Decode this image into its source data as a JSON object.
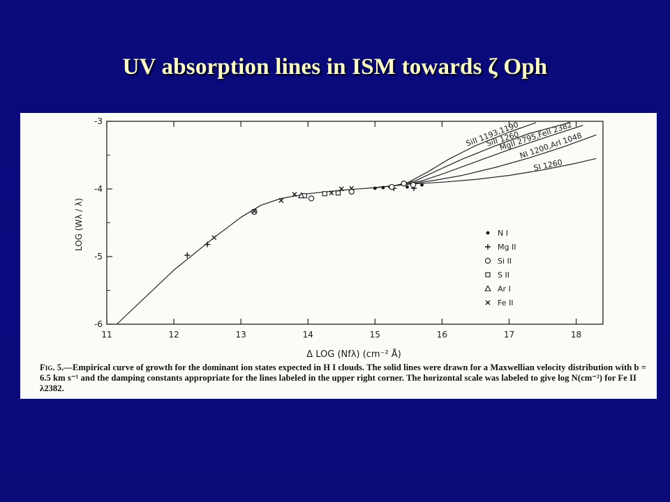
{
  "slide": {
    "title": "UV absorption lines in ISM towards ζ Oph"
  },
  "figure": {
    "caption_label": "Fig. 5.",
    "caption_text": "—Empirical curve of growth for the dominant ion states expected in H I clouds. The solid lines were drawn for a Maxwellian velocity distribution with b = 6.5 km s⁻¹ and the damping constants appropriate for the lines labeled in the upper right corner. The horizontal scale was labeled to give log N(cm⁻²) for Fe II λ2382."
  },
  "chart_data": {
    "type": "scatter",
    "xlabel": "Δ LOG (Nfλ)   (cm⁻² Å)",
    "ylabel": "LOG (Wλ / λ)",
    "xlim": [
      11,
      18.4
    ],
    "ylim": [
      -6,
      -3
    ],
    "xticks": [
      "11",
      "12",
      "13",
      "14",
      "15",
      "16",
      "17",
      "18"
    ],
    "yticks": [
      "-3",
      "-4",
      "-5",
      "-6"
    ],
    "grid": false,
    "legend_position": "right",
    "curves": [
      {
        "name": "SiII 1193,1190",
        "points": [
          [
            11.15,
            -6.0
          ],
          [
            12.0,
            -5.2
          ],
          [
            12.6,
            -4.72
          ],
          [
            13.0,
            -4.42
          ],
          [
            13.3,
            -4.24
          ],
          [
            13.6,
            -4.14
          ],
          [
            14.0,
            -4.07
          ],
          [
            14.5,
            -4.02
          ],
          [
            15.0,
            -3.98
          ],
          [
            15.3,
            -3.95
          ],
          [
            15.5,
            -3.9
          ],
          [
            15.8,
            -3.74
          ],
          [
            16.1,
            -3.56
          ],
          [
            16.5,
            -3.36
          ],
          [
            17.0,
            -3.16
          ],
          [
            17.4,
            -3.02
          ]
        ]
      },
      {
        "name": "SiII 1260",
        "points": [
          [
            15.0,
            -3.98
          ],
          [
            15.3,
            -3.95
          ],
          [
            15.6,
            -3.88
          ],
          [
            15.9,
            -3.74
          ],
          [
            16.3,
            -3.56
          ],
          [
            16.8,
            -3.36
          ],
          [
            17.3,
            -3.18
          ],
          [
            17.9,
            -3.02
          ]
        ]
      },
      {
        "name": "MgII 2795,FeII 2382",
        "points": [
          [
            15.0,
            -3.98
          ],
          [
            15.4,
            -3.94
          ],
          [
            15.7,
            -3.88
          ],
          [
            16.0,
            -3.78
          ],
          [
            16.5,
            -3.6
          ],
          [
            17.0,
            -3.42
          ],
          [
            17.6,
            -3.22
          ],
          [
            18.1,
            -3.06
          ]
        ]
      },
      {
        "name": "NI 1200,ArI 1048",
        "points": [
          [
            15.0,
            -3.98
          ],
          [
            15.5,
            -3.93
          ],
          [
            15.9,
            -3.87
          ],
          [
            16.3,
            -3.8
          ],
          [
            16.8,
            -3.68
          ],
          [
            17.3,
            -3.54
          ],
          [
            17.8,
            -3.38
          ],
          [
            18.3,
            -3.2
          ]
        ]
      },
      {
        "name": "SI 1260",
        "points": [
          [
            15.0,
            -3.98
          ],
          [
            15.5,
            -3.93
          ],
          [
            16.0,
            -3.9
          ],
          [
            16.5,
            -3.86
          ],
          [
            17.0,
            -3.8
          ],
          [
            17.5,
            -3.72
          ],
          [
            18.0,
            -3.62
          ],
          [
            18.3,
            -3.55
          ]
        ]
      }
    ],
    "series": [
      {
        "name": "N I",
        "marker": "dot",
        "points": [
          [
            15.0,
            -3.99
          ],
          [
            15.12,
            -3.98
          ],
          [
            15.22,
            -3.97
          ],
          [
            15.48,
            -3.97
          ],
          [
            15.7,
            -3.94
          ]
        ]
      },
      {
        "name": "Mg II",
        "marker": "plus",
        "points": [
          [
            12.2,
            -4.98
          ],
          [
            12.5,
            -4.82
          ],
          [
            15.28,
            -3.99
          ],
          [
            15.58,
            -3.99
          ]
        ]
      },
      {
        "name": "Si II",
        "marker": "circle",
        "points": [
          [
            13.2,
            -4.34
          ],
          [
            14.05,
            -4.14
          ],
          [
            14.65,
            -4.04
          ],
          [
            15.25,
            -3.97
          ],
          [
            15.43,
            -3.92
          ],
          [
            15.57,
            -3.94
          ]
        ]
      },
      {
        "name": "S II",
        "marker": "square",
        "points": [
          [
            13.95,
            -4.1
          ],
          [
            14.25,
            -4.07
          ],
          [
            14.45,
            -4.06
          ]
        ]
      },
      {
        "name": "Ar I",
        "marker": "triangle",
        "points": [
          [
            13.9,
            -4.1
          ]
        ]
      },
      {
        "name": "Fe II",
        "marker": "x",
        "points": [
          [
            12.6,
            -4.72
          ],
          [
            13.2,
            -4.33
          ],
          [
            13.6,
            -4.17
          ],
          [
            13.8,
            -4.08
          ],
          [
            14.35,
            -4.06
          ],
          [
            14.5,
            -4.0
          ],
          [
            14.65,
            -3.99
          ]
        ]
      }
    ]
  }
}
